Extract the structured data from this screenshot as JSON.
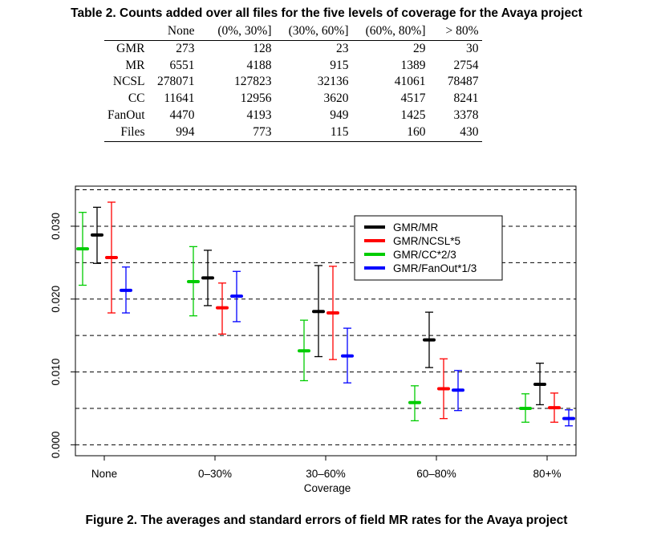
{
  "table": {
    "caption": "Table 2. Counts added over all files for the five levels of coverage for the Avaya project",
    "columns": [
      "None",
      "(0%, 30%]",
      "(30%, 60%]",
      "(60%, 80%]",
      "> 80%"
    ],
    "rows": [
      {
        "label": "GMR",
        "values": [
          "273",
          "128",
          "23",
          "29",
          "30"
        ]
      },
      {
        "label": "MR",
        "values": [
          "6551",
          "4188",
          "915",
          "1389",
          "2754"
        ]
      },
      {
        "label": "NCSL",
        "values": [
          "278071",
          "127823",
          "32136",
          "41061",
          "78487"
        ]
      },
      {
        "label": "CC",
        "values": [
          "11641",
          "12956",
          "3620",
          "4517",
          "8241"
        ]
      },
      {
        "label": "FanOut",
        "values": [
          "4470",
          "4193",
          "949",
          "1425",
          "3378"
        ]
      },
      {
        "label": "Files",
        "values": [
          "994",
          "773",
          "115",
          "160",
          "430"
        ]
      }
    ]
  },
  "figure": {
    "caption": "Figure 2. The averages and standard errors of field MR rates for the Avaya project"
  },
  "chart_data": {
    "type": "errorbar",
    "xlabel": "Coverage",
    "ylabel": "",
    "categories": [
      "None",
      "0–30%",
      "30–60%",
      "60–80%",
      "80+%"
    ],
    "ylim": [
      -0.0015,
      0.0355
    ],
    "yticks": [
      0.0,
      0.01,
      0.02,
      0.03
    ],
    "ytick_labels": [
      "0.000",
      "0.010",
      "0.020",
      "0.030"
    ],
    "gridlines": [
      0.0,
      0.005,
      0.01,
      0.015,
      0.02,
      0.025,
      0.03,
      0.035
    ],
    "legend_position": "top-right",
    "series": [
      {
        "name": "GMR/CC*2/3",
        "color": "#00cc00",
        "mean": [
          0.0269,
          0.0224,
          0.0129,
          0.0058,
          0.005
        ],
        "lower": [
          0.0219,
          0.0177,
          0.0088,
          0.0033,
          0.0031
        ],
        "upper": [
          0.0319,
          0.0272,
          0.0171,
          0.0081,
          0.007
        ]
      },
      {
        "name": "GMR/MR",
        "color": "#000000",
        "mean": [
          0.0288,
          0.0229,
          0.0183,
          0.0144,
          0.0083
        ],
        "lower": [
          0.0249,
          0.0191,
          0.0121,
          0.0106,
          0.0055
        ],
        "upper": [
          0.0326,
          0.0267,
          0.0246,
          0.0182,
          0.0112
        ]
      },
      {
        "name": "GMR/NCSL*5",
        "color": "#ff0000",
        "mean": [
          0.0257,
          0.0188,
          0.0181,
          0.0077,
          0.0051
        ],
        "lower": [
          0.0181,
          0.0152,
          0.0117,
          0.0036,
          0.0031
        ],
        "upper": [
          0.0333,
          0.0222,
          0.0245,
          0.0118,
          0.0071
        ]
      },
      {
        "name": "GMR/FanOut*1/3",
        "color": "#0000ff",
        "mean": [
          0.0212,
          0.0204,
          0.0122,
          0.0075,
          0.0036
        ],
        "lower": [
          0.0181,
          0.0169,
          0.0085,
          0.0047,
          0.0026
        ],
        "upper": [
          0.0244,
          0.0238,
          0.016,
          0.0102,
          0.0048
        ]
      }
    ],
    "legend_order": [
      "GMR/MR",
      "GMR/NCSL*5",
      "GMR/CC*2/3",
      "GMR/FanOut*1/3"
    ]
  }
}
